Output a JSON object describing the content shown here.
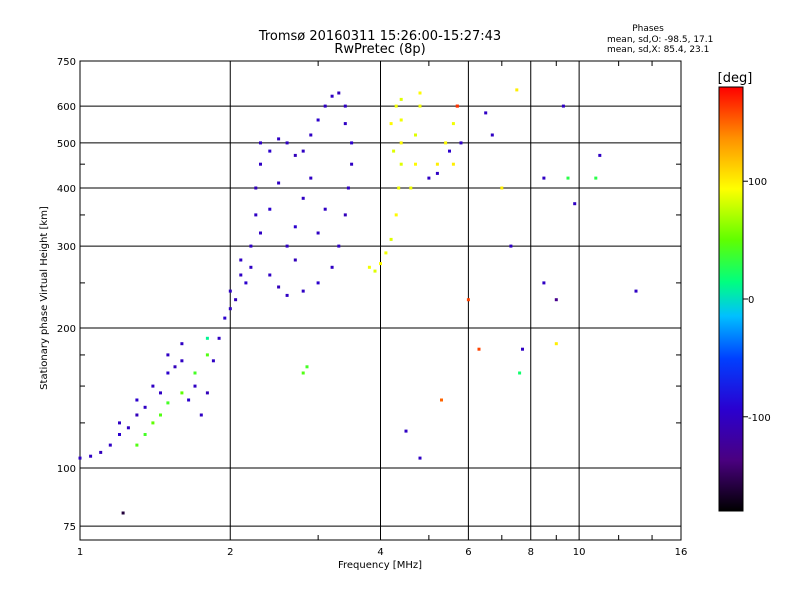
{
  "chart_data": {
    "type": "scatter",
    "title": "Tromsø 20160311 15:26:00-15:27:43",
    "subtitle": "RwPretec (8p)",
    "xlabel": "Frequency [MHz]",
    "ylabel": "Stationary phase Virtual Height [km]",
    "xscale": "log",
    "yscale": "log",
    "xlim": [
      1,
      16
    ],
    "ylim": [
      70,
      750
    ],
    "x_ticks": [
      1,
      2,
      4,
      6,
      8,
      10,
      16
    ],
    "x_tick_labels": [
      "1",
      "2",
      "4",
      "6",
      "8",
      "10",
      "16"
    ],
    "y_ticks": [
      75,
      100,
      200,
      300,
      400,
      500,
      600,
      750
    ],
    "y_tick_labels": [
      "75",
      "100",
      "200",
      "300",
      "400",
      "500",
      "600",
      "750"
    ],
    "grid": true,
    "stats": {
      "heading": "Phases",
      "line_o": "mean, sd,O: -98.5, 17.1",
      "line_x": "mean, sd,X:  85.4, 23.1"
    },
    "colorbar": {
      "label": "[deg]",
      "min": -180,
      "max": 180,
      "ticks": [
        100,
        0,
        -100
      ],
      "tick_labels": [
        "100",
        "0",
        "-100"
      ]
    },
    "series": [
      {
        "points": [
          [
            1.0,
            105,
            -100
          ],
          [
            1.05,
            106,
            -100
          ],
          [
            1.1,
            108,
            -105
          ],
          [
            1.15,
            112,
            -100
          ],
          [
            1.2,
            118,
            -95
          ],
          [
            1.2,
            125,
            -100
          ],
          [
            1.25,
            122,
            -100
          ],
          [
            1.3,
            130,
            -105
          ],
          [
            1.3,
            140,
            -95
          ],
          [
            1.35,
            135,
            -100
          ],
          [
            1.4,
            150,
            -100
          ],
          [
            1.45,
            145,
            -100
          ],
          [
            1.5,
            160,
            -95
          ],
          [
            1.5,
            175,
            -100
          ],
          [
            1.55,
            165,
            -105
          ],
          [
            1.6,
            185,
            -100
          ],
          [
            1.6,
            170,
            -100
          ],
          [
            1.65,
            140,
            -95
          ],
          [
            1.7,
            150,
            -100
          ],
          [
            1.75,
            130,
            -100
          ],
          [
            1.8,
            145,
            -105
          ],
          [
            1.85,
            170,
            -100
          ],
          [
            1.9,
            190,
            -100
          ],
          [
            1.95,
            210,
            -95
          ],
          [
            2.0,
            220,
            -100
          ],
          [
            2.0,
            240,
            -100
          ],
          [
            2.05,
            230,
            -105
          ],
          [
            2.1,
            260,
            -100
          ],
          [
            2.1,
            280,
            -100
          ],
          [
            2.15,
            250,
            -95
          ],
          [
            2.2,
            270,
            -100
          ],
          [
            2.2,
            300,
            -100
          ],
          [
            2.25,
            350,
            -100
          ],
          [
            2.25,
            400,
            -105
          ],
          [
            2.3,
            450,
            -100
          ],
          [
            2.3,
            500,
            -100
          ],
          [
            2.4,
            480,
            -95
          ],
          [
            2.5,
            510,
            -100
          ],
          [
            2.6,
            500,
            -100
          ],
          [
            2.7,
            470,
            -105
          ],
          [
            2.8,
            480,
            -100
          ],
          [
            2.9,
            520,
            -100
          ],
          [
            3.0,
            560,
            -95
          ],
          [
            3.1,
            600,
            -100
          ],
          [
            3.2,
            630,
            -100
          ],
          [
            3.3,
            640,
            -105
          ],
          [
            3.4,
            600,
            -100
          ],
          [
            3.4,
            550,
            -100
          ],
          [
            3.5,
            500,
            -95
          ],
          [
            3.5,
            450,
            -100
          ],
          [
            3.45,
            400,
            -100
          ],
          [
            3.4,
            350,
            -105
          ],
          [
            3.3,
            300,
            -100
          ],
          [
            3.2,
            270,
            -100
          ],
          [
            3.0,
            250,
            -95
          ],
          [
            2.8,
            240,
            -100
          ],
          [
            2.6,
            235,
            -100
          ],
          [
            2.5,
            245,
            -105
          ],
          [
            2.4,
            260,
            -100
          ],
          [
            2.6,
            300,
            -100
          ],
          [
            2.7,
            330,
            -95
          ],
          [
            2.8,
            380,
            -100
          ],
          [
            2.9,
            420,
            -100
          ],
          [
            2.7,
            280,
            -105
          ],
          [
            3.0,
            320,
            -100
          ],
          [
            3.1,
            360,
            -100
          ],
          [
            2.3,
            320,
            -100
          ],
          [
            2.4,
            360,
            -95
          ],
          [
            2.5,
            410,
            -100
          ],
          [
            1.3,
            112,
            45
          ],
          [
            1.35,
            118,
            40
          ],
          [
            1.4,
            125,
            50
          ],
          [
            1.45,
            130,
            45
          ],
          [
            1.5,
            138,
            40
          ],
          [
            1.6,
            145,
            50
          ],
          [
            1.7,
            160,
            40
          ],
          [
            1.8,
            175,
            45
          ],
          [
            2.8,
            160,
            45
          ],
          [
            2.85,
            165,
            40
          ],
          [
            1.8,
            190,
            10
          ],
          [
            3.8,
            270,
            90
          ],
          [
            3.9,
            265,
            85
          ],
          [
            4.0,
            275,
            95
          ],
          [
            4.1,
            290,
            90
          ],
          [
            4.2,
            310,
            85
          ],
          [
            4.3,
            350,
            95
          ],
          [
            4.35,
            400,
            90
          ],
          [
            4.4,
            450,
            85
          ],
          [
            4.4,
            500,
            95
          ],
          [
            4.4,
            560,
            90
          ],
          [
            4.4,
            620,
            85
          ],
          [
            4.3,
            600,
            90
          ],
          [
            4.2,
            550,
            95
          ],
          [
            4.25,
            480,
            85
          ],
          [
            4.6,
            400,
            90
          ],
          [
            4.7,
            450,
            95
          ],
          [
            4.7,
            520,
            85
          ],
          [
            4.8,
            600,
            90
          ],
          [
            4.8,
            640,
            95
          ],
          [
            5.2,
            450,
            100
          ],
          [
            5.4,
            500,
            95
          ],
          [
            5.6,
            550,
            90
          ],
          [
            5.6,
            450,
            100
          ],
          [
            5.0,
            420,
            -100
          ],
          [
            5.2,
            430,
            -100
          ],
          [
            5.5,
            480,
            -95
          ],
          [
            5.8,
            500,
            -100
          ],
          [
            5.7,
            600,
            160
          ],
          [
            6.5,
            580,
            -100
          ],
          [
            6.7,
            520,
            -100
          ],
          [
            7.0,
            400,
            100
          ],
          [
            7.3,
            300,
            -100
          ],
          [
            7.5,
            650,
            100
          ],
          [
            7.7,
            180,
            -100
          ],
          [
            7.6,
            160,
            20
          ],
          [
            8.5,
            420,
            -100
          ],
          [
            8.5,
            250,
            -100
          ],
          [
            9.0,
            185,
            100
          ],
          [
            9.0,
            230,
            -130
          ],
          [
            9.3,
            600,
            -100
          ],
          [
            9.5,
            420,
            30
          ],
          [
            9.8,
            370,
            -100
          ],
          [
            10.8,
            420,
            30
          ],
          [
            11.0,
            470,
            -100
          ],
          [
            13.0,
            240,
            -100
          ],
          [
            4.5,
            120,
            -100
          ],
          [
            4.8,
            105,
            -100
          ],
          [
            5.3,
            140,
            150
          ],
          [
            6.0,
            230,
            160
          ],
          [
            6.3,
            180,
            160
          ],
          [
            5.7,
            600,
            165
          ],
          [
            1.22,
            80,
            -160
          ]
        ]
      }
    ]
  }
}
